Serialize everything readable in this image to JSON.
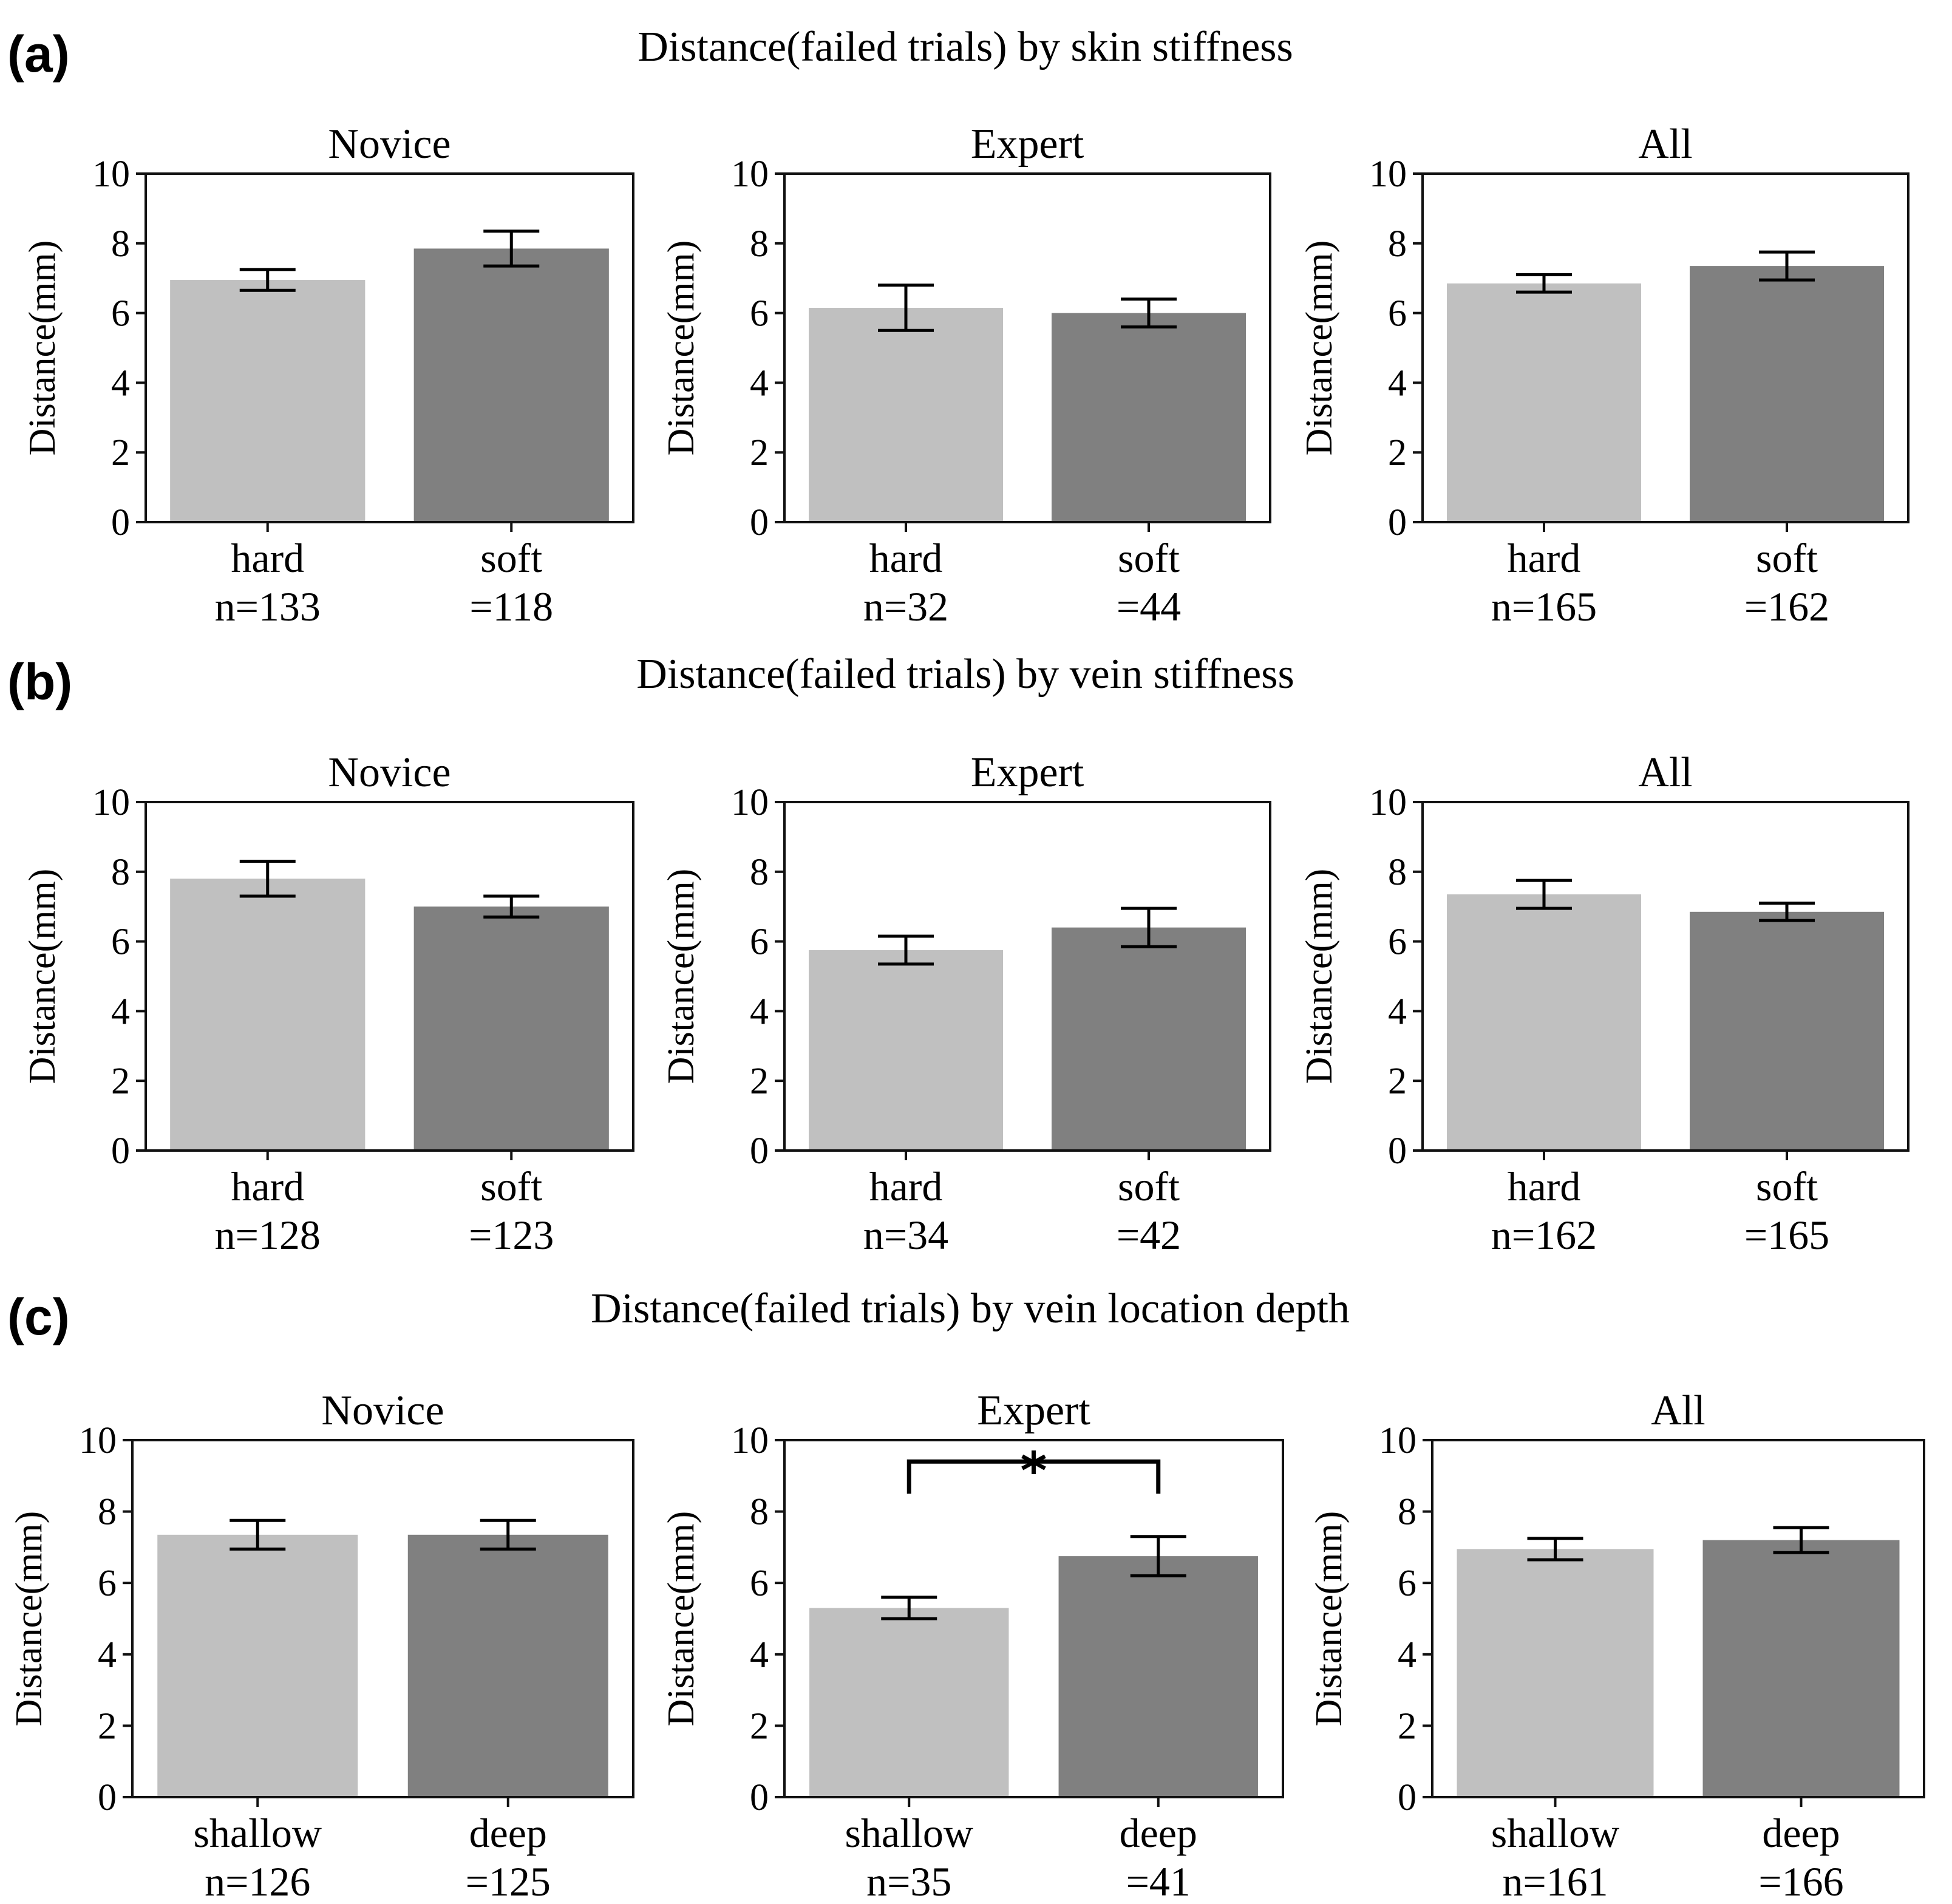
{
  "chart_data": [
    {
      "panel": "(a)",
      "row_title": "Distance(failed trials) by skin stiffness",
      "charts": [
        {
          "type": "bar",
          "title": "Novice",
          "ylabel": "Distance(mm)",
          "ylim": [
            0,
            10
          ],
          "yticks": [
            "0",
            "2",
            "4",
            "6",
            "8",
            "10"
          ],
          "categories": [
            "hard",
            "soft"
          ],
          "n_labels": [
            "n=133",
            "=118"
          ],
          "values": [
            6.95,
            7.85
          ],
          "errors": [
            0.3,
            0.5
          ],
          "colors": [
            "#c0c0c0",
            "#808080"
          ]
        },
        {
          "type": "bar",
          "title": "Expert",
          "ylabel": "Distance(mm)",
          "ylim": [
            0,
            10
          ],
          "yticks": [
            "0",
            "2",
            "4",
            "6",
            "8",
            "10"
          ],
          "categories": [
            "hard",
            "soft"
          ],
          "n_labels": [
            "n=32",
            "=44"
          ],
          "values": [
            6.15,
            6.0
          ],
          "errors": [
            0.65,
            0.4
          ],
          "colors": [
            "#c0c0c0",
            "#808080"
          ]
        },
        {
          "type": "bar",
          "title": "All",
          "ylabel": "Distance(mm)",
          "ylim": [
            0,
            10
          ],
          "yticks": [
            "0",
            "2",
            "4",
            "6",
            "8",
            "10"
          ],
          "categories": [
            "hard",
            "soft"
          ],
          "n_labels": [
            "n=165",
            "=162"
          ],
          "values": [
            6.85,
            7.35
          ],
          "errors": [
            0.25,
            0.4
          ],
          "colors": [
            "#c0c0c0",
            "#808080"
          ]
        }
      ]
    },
    {
      "panel": "(b)",
      "row_title": "Distance(failed trials) by vein stiffness",
      "charts": [
        {
          "type": "bar",
          "title": "Novice",
          "ylabel": "Distance(mm)",
          "ylim": [
            0,
            10
          ],
          "yticks": [
            "0",
            "2",
            "4",
            "6",
            "8",
            "10"
          ],
          "categories": [
            "hard",
            "soft"
          ],
          "n_labels": [
            "n=128",
            "=123"
          ],
          "values": [
            7.8,
            7.0
          ],
          "errors": [
            0.5,
            0.3
          ],
          "colors": [
            "#c0c0c0",
            "#808080"
          ]
        },
        {
          "type": "bar",
          "title": "Expert",
          "ylabel": "Distance(mm)",
          "ylim": [
            0,
            10
          ],
          "yticks": [
            "0",
            "2",
            "4",
            "6",
            "8",
            "10"
          ],
          "categories": [
            "hard",
            "soft"
          ],
          "n_labels": [
            "n=34",
            "=42"
          ],
          "values": [
            5.75,
            6.4
          ],
          "errors": [
            0.4,
            0.55
          ],
          "colors": [
            "#c0c0c0",
            "#808080"
          ]
        },
        {
          "type": "bar",
          "title": "All",
          "ylabel": "Distance(mm)",
          "ylim": [
            0,
            10
          ],
          "yticks": [
            "0",
            "2",
            "4",
            "6",
            "8",
            "10"
          ],
          "categories": [
            "hard",
            "soft"
          ],
          "n_labels": [
            "n=162",
            "=165"
          ],
          "values": [
            7.35,
            6.85
          ],
          "errors": [
            0.4,
            0.25
          ],
          "colors": [
            "#c0c0c0",
            "#808080"
          ]
        }
      ]
    },
    {
      "panel": "(c)",
      "row_title": "Distance(failed trials) by vein location depth",
      "charts": [
        {
          "type": "bar",
          "title": "Novice",
          "ylabel": "Distance(mm)",
          "ylim": [
            0,
            10
          ],
          "yticks": [
            "0",
            "2",
            "4",
            "6",
            "8",
            "10"
          ],
          "categories": [
            "shallow",
            "deep"
          ],
          "n_labels": [
            "n=126",
            "=125"
          ],
          "values": [
            7.35,
            7.35
          ],
          "errors": [
            0.4,
            0.4
          ],
          "colors": [
            "#c0c0c0",
            "#808080"
          ]
        },
        {
          "type": "bar",
          "title": "Expert",
          "ylabel": "Distance(mm)",
          "ylim": [
            0,
            10
          ],
          "yticks": [
            "0",
            "2",
            "4",
            "6",
            "8",
            "10"
          ],
          "categories": [
            "shallow",
            "deep"
          ],
          "n_labels": [
            "n=35",
            "=41"
          ],
          "values": [
            5.3,
            6.75
          ],
          "errors": [
            0.3,
            0.55
          ],
          "colors": [
            "#c0c0c0",
            "#808080"
          ],
          "significance": {
            "label": "*",
            "y": 9.4,
            "drop": 8.5
          }
        },
        {
          "type": "bar",
          "title": "All",
          "ylabel": "Distance(mm)",
          "ylim": [
            0,
            10
          ],
          "yticks": [
            "0",
            "2",
            "4",
            "6",
            "8",
            "10"
          ],
          "categories": [
            "shallow",
            "deep"
          ],
          "n_labels": [
            "n=161",
            "=166"
          ],
          "values": [
            6.95,
            7.2
          ],
          "errors": [
            0.3,
            0.35
          ],
          "colors": [
            "#c0c0c0",
            "#808080"
          ]
        }
      ]
    }
  ]
}
